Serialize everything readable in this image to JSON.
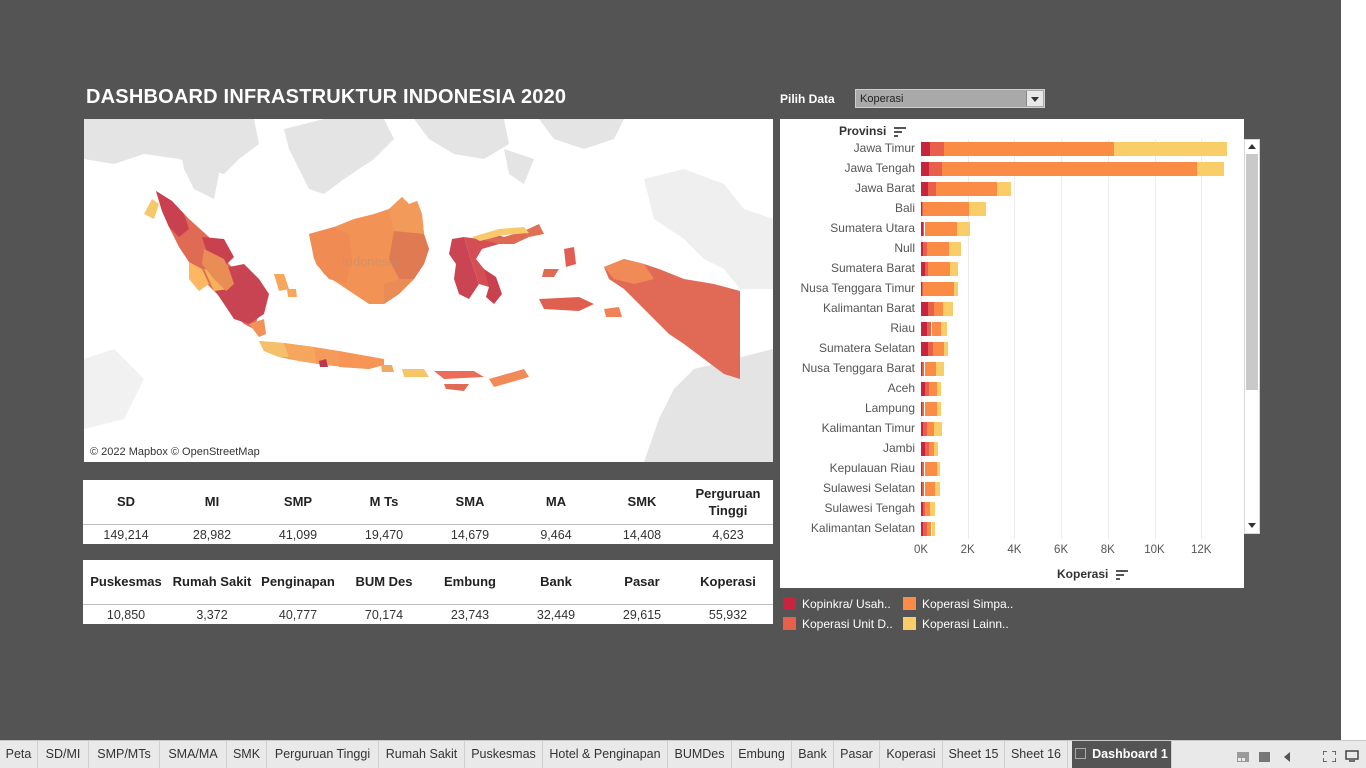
{
  "dashboard": {
    "title": "DASHBOARD INFRASTRUKTUR INDONESIA 2020",
    "filter_label": "Pilih Data",
    "filter_value": "Koperasi"
  },
  "map": {
    "attribution": "© 2022 Mapbox © OpenStreetMap",
    "watermark": "Indonesia"
  },
  "table1": {
    "headers": [
      "SD",
      "MI",
      "SMP",
      "M Ts",
      "SMA",
      "MA",
      "SMK",
      "Perguruan Tinggi"
    ],
    "values": [
      "149,214",
      "28,982",
      "41,099",
      "19,470",
      "14,679",
      "9,464",
      "14,408",
      "4,623"
    ]
  },
  "table2": {
    "headers": [
      "Puskesmas",
      "Rumah Sakit",
      "Penginapan",
      "BUM Des",
      "Embung",
      "Bank",
      "Pasar",
      "Koperasi"
    ],
    "values": [
      "10,850",
      "3,372",
      "40,777",
      "70,174",
      "23,743",
      "32,449",
      "29,615",
      "55,932"
    ]
  },
  "chart_data": {
    "type": "bar",
    "orientation": "horizontal",
    "stacked": true,
    "title": "",
    "ylabel": "Provinsi",
    "xlabel": "Koperasi",
    "xlim": [
      0,
      13500
    ],
    "x_ticks": [
      "0K",
      "2K",
      "4K",
      "6K",
      "8K",
      "10K",
      "12K"
    ],
    "x_tick_values": [
      0,
      2000,
      4000,
      6000,
      8000,
      10000,
      12000
    ],
    "grid": true,
    "legend_position": "bottom",
    "categories": [
      "Jawa Timur",
      "Jawa Tengah",
      "Jawa Barat",
      "Bali",
      "Sumatera Utara",
      "Null",
      "Sumatera Barat",
      "Nusa Tenggara Timur",
      "Kalimantan Barat",
      "Riau",
      "Sumatera Selatan",
      "Nusa Tenggara Barat",
      "Aceh",
      "Lampung",
      "Kalimantan Timur",
      "Jambi",
      "Kepulauan Riau",
      "Sulawesi Selatan",
      "Sulawesi Tengah",
      "Kalimantan Selatan"
    ],
    "series": [
      {
        "name": "Kopinkra/ Usah..",
        "color": "#c7253e",
        "values": [
          380,
          360,
          300,
          30,
          100,
          100,
          150,
          50,
          300,
          250,
          300,
          50,
          150,
          50,
          100,
          150,
          50,
          50,
          80,
          100
        ]
      },
      {
        "name": "Koperasi Unit D..",
        "color": "#e8604c",
        "values": [
          600,
          550,
          360,
          70,
          50,
          150,
          150,
          50,
          250,
          200,
          200,
          100,
          200,
          100,
          150,
          200,
          100,
          100,
          100,
          150
        ]
      },
      {
        "name": "Koperasi Simpa..",
        "color": "#fb8c46",
        "values": [
          7300,
          10900,
          2600,
          1950,
          1400,
          950,
          950,
          1300,
          400,
          400,
          500,
          500,
          350,
          550,
          300,
          200,
          550,
          450,
          200,
          200
        ]
      },
      {
        "name": "Koperasi Lainn..",
        "color": "#f9ce68",
        "values": [
          4820,
          1150,
          600,
          750,
          550,
          500,
          350,
          200,
          400,
          250,
          150,
          350,
          150,
          150,
          350,
          200,
          100,
          200,
          200,
          150
        ]
      }
    ]
  },
  "tabs": [
    "Peta",
    "SD/MI",
    "SMP/MTs",
    "SMA/MA",
    "SMK",
    "Perguruan Tinggi",
    "Rumah Sakit",
    "Puskesmas",
    "Hotel & Penginapan",
    "BUMDes",
    "Embung",
    "Bank",
    "Pasar",
    "Koperasi",
    "Sheet 15",
    "Sheet 16",
    "Dashboard 1"
  ],
  "active_tab": "Dashboard 1"
}
